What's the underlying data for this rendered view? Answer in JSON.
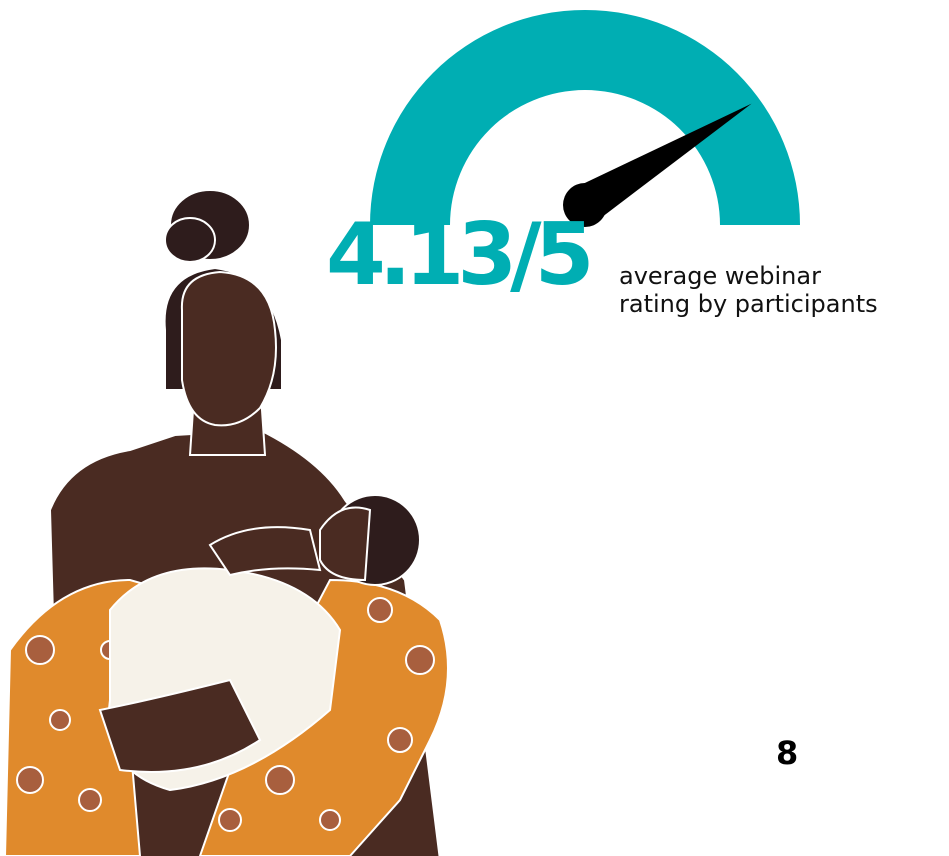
{
  "rating": {
    "value": "4.13/5",
    "score": 4.13,
    "max": 5,
    "caption_line1": "average webinar",
    "caption_line2": "rating by participants"
  },
  "page": {
    "number": "8"
  },
  "colors": {
    "accent": "#00aeb3",
    "needle": "#000000",
    "skin": "#4a2b22",
    "hair": "#2e1c1c",
    "dress": "#e08a2c",
    "dress_pattern": "#a85f3e",
    "blanket": "#f6f2e9"
  },
  "icons": [
    "gauge-icon",
    "mother-and-baby-illustration"
  ]
}
